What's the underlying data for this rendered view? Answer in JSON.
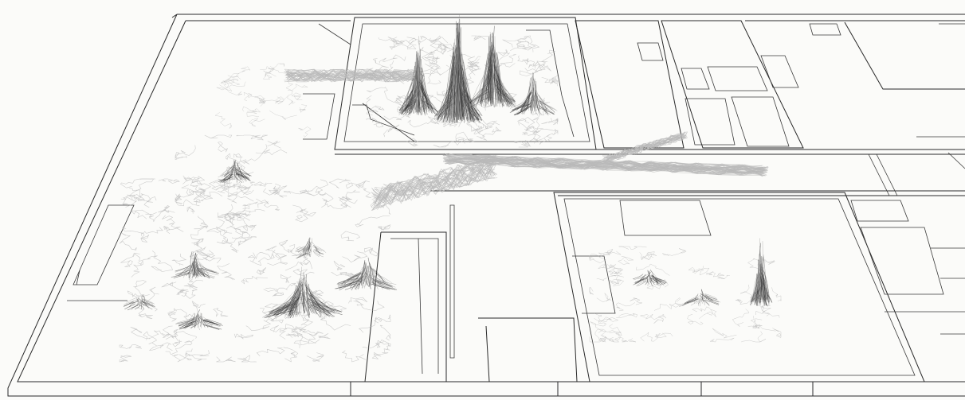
{
  "figure": {
    "kind": "3d-floorplan-movement-trace-landscape",
    "text": ""
  },
  "regions": [
    {
      "name": "upper-center-cluster",
      "label": "",
      "style": "tall peaks"
    },
    {
      "name": "left-lobby-cluster",
      "label": "",
      "style": "dense rolling mounds"
    },
    {
      "name": "lower-right-cluster",
      "label": "",
      "style": "single spike with mounds"
    },
    {
      "name": "corridor-traces",
      "label": "",
      "style": "horizontal streams"
    }
  ],
  "colors": {
    "background": "#fbfbf9",
    "wall": "#2a2a2a",
    "trace_light": "#b9b9b9",
    "trace_dark": "#2b2b2b"
  }
}
